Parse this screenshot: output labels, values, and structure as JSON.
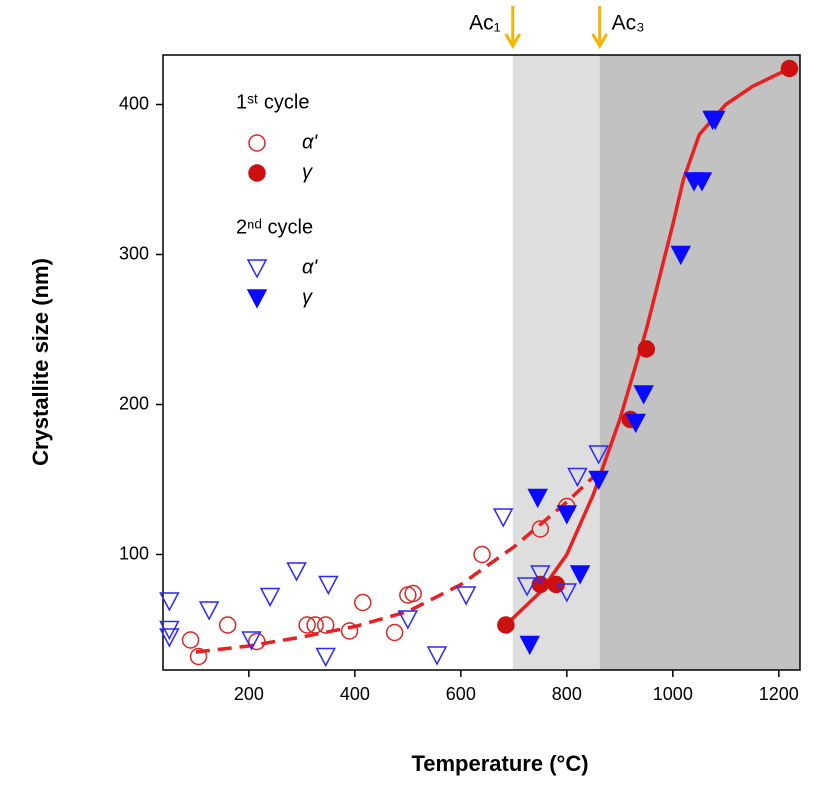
{
  "chart_data": {
    "type": "scatter",
    "x_label": "Temperature (°C)",
    "y_label": "Crystallite size (nm)",
    "xlim": [
      38,
      1240
    ],
    "ylim": [
      23,
      433
    ],
    "xticks": [
      200,
      400,
      600,
      800,
      1000,
      1200
    ],
    "yticks": [
      100,
      200,
      300,
      400
    ],
    "legend_titles": [
      "1ˢᵗ cycle",
      "2ⁿᵈ cycle"
    ],
    "regions": [
      {
        "from": 698,
        "to": 862,
        "color": "#dedede"
      },
      {
        "from": 862,
        "to": 1240,
        "color": "#c2c2c2"
      }
    ],
    "annotations": [
      {
        "text": "Ac₁",
        "x": 698,
        "color": "#f5b400"
      },
      {
        "text": "Ac₃",
        "x": 862,
        "color": "#f5b400"
      }
    ],
    "series": [
      {
        "name": "α'",
        "color": "#e02424",
        "marker": "circle",
        "filled": false,
        "x": [
          90,
          105,
          160,
          215,
          310,
          325,
          345,
          390,
          415,
          475,
          500,
          510,
          640,
          750,
          800
        ],
        "values": [
          43,
          32,
          53,
          42,
          53,
          53,
          53,
          49,
          68,
          48,
          73,
          74,
          100,
          117,
          132
        ]
      },
      {
        "name": "γ",
        "color": "#cc1010",
        "marker": "circle",
        "filled": true,
        "x": [
          685,
          750,
          780,
          920,
          950,
          1220
        ],
        "values": [
          53,
          80,
          80,
          190,
          237,
          424
        ]
      },
      {
        "name": "α'",
        "color": "#2a2aff",
        "marker": "triangle",
        "filled": false,
        "x": [
          50,
          50,
          50,
          125,
          205,
          240,
          290,
          345,
          350,
          500,
          555,
          610,
          680,
          725,
          750,
          800,
          820,
          860
        ],
        "values": [
          69,
          50,
          45,
          63,
          43,
          72,
          89,
          32,
          80,
          57,
          33,
          73,
          125,
          79,
          87,
          75,
          152,
          167
        ]
      },
      {
        "name": "γ",
        "color": "#0a0aff",
        "marker": "triangle",
        "filled": true,
        "x": [
          730,
          745,
          800,
          825,
          860,
          930,
          945,
          1015,
          1040,
          1055,
          1075,
          1080
        ],
        "values": [
          40,
          138,
          127,
          87,
          150,
          188,
          207,
          300,
          349,
          349,
          390,
          390
        ]
      }
    ],
    "curves": [
      {
        "color": "#e82020",
        "dashed": true,
        "x": [
          100,
          200,
          300,
          400,
          500,
          600,
          700,
          800,
          860
        ],
        "values": [
          35,
          39,
          45,
          52,
          62,
          80,
          105,
          135,
          155
        ]
      },
      {
        "color": "#e82020",
        "dashed": false,
        "x": [
          685,
          750,
          800,
          850,
          900,
          950,
          1000,
          1020,
          1050,
          1100,
          1150,
          1220
        ],
        "values": [
          53,
          75,
          100,
          140,
          190,
          250,
          320,
          350,
          380,
          400,
          412,
          424
        ]
      }
    ]
  }
}
